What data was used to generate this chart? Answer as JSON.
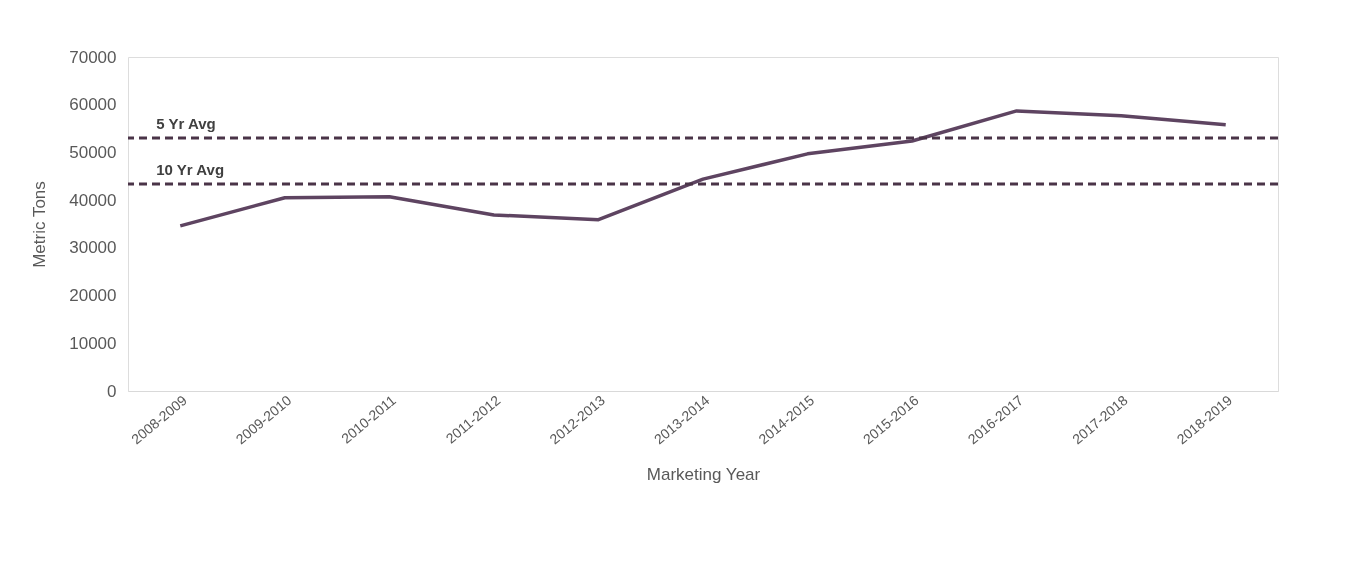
{
  "chart_data": {
    "type": "line",
    "xlabel": "Marketing Year",
    "ylabel": "Metric Tons",
    "categories": [
      "2008-2009",
      "2009-2010",
      "2010-2011",
      "2011-2012",
      "2012-2013",
      "2013-2014",
      "2014-2015",
      "2015-2016",
      "2016-2017",
      "2017-2018",
      "2018-2019"
    ],
    "series": [
      {
        "color": "#5e4461",
        "values": [
          34600,
          40500,
          40700,
          36900,
          35900,
          44400,
          49700,
          52400,
          58700,
          57700,
          55800
        ]
      }
    ],
    "ylim": [
      0,
      70000
    ],
    "yticks": [
      0,
      10000,
      20000,
      30000,
      40000,
      50000,
      60000,
      70000
    ],
    "ref_lines": [
      {
        "axis": "y",
        "value": 53000,
        "label": "5 Yr Avg",
        "color": "#4a3448",
        "line_style": "dashed"
      },
      {
        "axis": "y",
        "value": 43400,
        "label": "10 Yr Avg",
        "color": "#4a3448",
        "line_style": "dashed"
      }
    ],
    "grid": false,
    "legend": false,
    "marker": "none",
    "line_style": "solid"
  }
}
